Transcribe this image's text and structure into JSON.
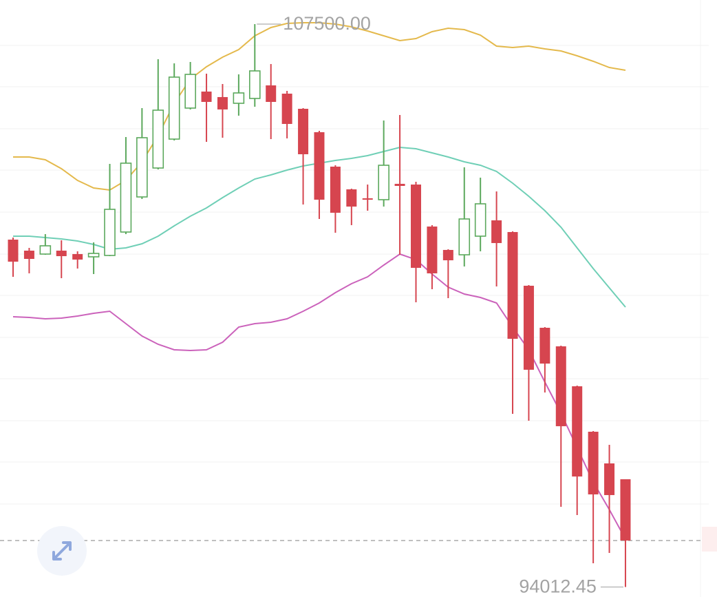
{
  "chart_data": {
    "type": "candlestick",
    "ylim": [
      93772.5,
      108078
    ],
    "up_color": "#5ba85c",
    "down_color": "#d6454f",
    "candles": [
      {
        "open": 102336,
        "high": 102386,
        "low": 101445,
        "close": 101808
      },
      {
        "open": 102072,
        "high": 102138,
        "low": 101528,
        "close": 101874
      },
      {
        "open": 101990,
        "high": 102468,
        "low": 101973,
        "close": 102188
      },
      {
        "open": 102072,
        "high": 102320,
        "low": 101412,
        "close": 101940
      },
      {
        "open": 101990,
        "high": 102056,
        "low": 101643,
        "close": 101858
      },
      {
        "open": 101924,
        "high": 102270,
        "low": 101511,
        "close": 102006
      },
      {
        "open": 101957,
        "high": 104151,
        "low": 101940,
        "close": 103062
      },
      {
        "open": 102518,
        "high": 104795,
        "low": 102468,
        "close": 104168
      },
      {
        "open": 103359,
        "high": 105488,
        "low": 103310,
        "close": 104778
      },
      {
        "open": 104052,
        "high": 106659,
        "low": 104019,
        "close": 105438
      },
      {
        "open": 104745,
        "high": 106560,
        "low": 104712,
        "close": 106230
      },
      {
        "open": 105488,
        "high": 106593,
        "low": 105455,
        "close": 106296
      },
      {
        "open": 105884,
        "high": 106313,
        "low": 104679,
        "close": 105636
      },
      {
        "open": 105752,
        "high": 106065,
        "low": 104778,
        "close": 105455
      },
      {
        "open": 105603,
        "high": 106296,
        "low": 105306,
        "close": 105851
      },
      {
        "open": 105719,
        "high": 107500,
        "low": 105521,
        "close": 106379
      },
      {
        "open": 106032,
        "high": 106544,
        "low": 104745,
        "close": 105636
      },
      {
        "open": 105834,
        "high": 105900,
        "low": 104762,
        "close": 105108
      },
      {
        "open": 105471,
        "high": 105488,
        "low": 103178,
        "close": 104382
      },
      {
        "open": 104910,
        "high": 104943,
        "low": 102831,
        "close": 103293
      },
      {
        "open": 104085,
        "high": 104118,
        "low": 102501,
        "close": 102980
      },
      {
        "open": 103541,
        "high": 103557,
        "low": 102683,
        "close": 103128
      },
      {
        "open": 103326,
        "high": 103656,
        "low": 103029,
        "close": 103293
      },
      {
        "open": 103293,
        "high": 105191,
        "low": 103128,
        "close": 104118
      },
      {
        "open": 103673,
        "high": 105323,
        "low": 101973,
        "close": 103623
      },
      {
        "open": 103656,
        "high": 103722,
        "low": 100835,
        "close": 101660
      },
      {
        "open": 102650,
        "high": 102683,
        "low": 101148,
        "close": 101528
      },
      {
        "open": 102089,
        "high": 102105,
        "low": 100934,
        "close": 101841
      },
      {
        "open": 101973,
        "high": 104069,
        "low": 101693,
        "close": 102831
      },
      {
        "open": 102419,
        "high": 103821,
        "low": 102056,
        "close": 103194
      },
      {
        "open": 102798,
        "high": 103491,
        "low": 101214,
        "close": 102254
      },
      {
        "open": 102518,
        "high": 102534,
        "low": 98162,
        "close": 99960
      },
      {
        "open": 101231,
        "high": 101247,
        "low": 97997,
        "close": 99218
      },
      {
        "open": 100224,
        "high": 100241,
        "low": 98673,
        "close": 99366
      },
      {
        "open": 99779,
        "high": 99795,
        "low": 95934,
        "close": 97865
      },
      {
        "open": 98822,
        "high": 98838,
        "low": 95736,
        "close": 96660
      },
      {
        "open": 97733,
        "high": 97749,
        "low": 94581,
        "close": 96231
      },
      {
        "open": 96974,
        "high": 97419,
        "low": 94829,
        "close": 96215
      },
      {
        "open": 96594,
        "high": 96594,
        "low": 94012.45,
        "close": 95126
      }
    ],
    "overlays": [
      {
        "color": "#e4b94c",
        "values": [
          104316,
          104316,
          104250,
          104036,
          103755,
          103574,
          103524,
          103755,
          104201,
          104828,
          105603,
          106181,
          106478,
          106709,
          106890,
          107220,
          107418,
          107517,
          107534,
          107534,
          107500,
          107435,
          107336,
          107220,
          107105,
          107154,
          107319,
          107402,
          107369,
          107237,
          106973,
          106940,
          106973,
          106907,
          106857,
          106742,
          106610,
          106461,
          106395
        ]
      },
      {
        "color": "#6fcfb6",
        "values": [
          102419,
          102419,
          102386,
          102353,
          102303,
          102221,
          102105,
          102138,
          102237,
          102419,
          102666,
          102897,
          103095,
          103343,
          103574,
          103788,
          103887,
          104003,
          104102,
          104168,
          104234,
          104283,
          104349,
          104448,
          104547,
          104514,
          104415,
          104316,
          104201,
          104118,
          103970,
          103689,
          103376,
          103029,
          102633,
          102138,
          101643,
          101181,
          100719
        ]
      },
      {
        "color": "#cb62bb",
        "values": [
          100488,
          100472,
          100439,
          100455,
          100505,
          100571,
          100620,
          100323,
          100026,
          99828,
          99696,
          99680,
          99696,
          99878,
          100241,
          100323,
          100356,
          100439,
          100620,
          100818,
          101066,
          101280,
          101445,
          101726,
          101990,
          101858,
          101511,
          101198,
          101033,
          100950,
          100818,
          100241,
          99696,
          98921,
          98178,
          97353,
          96528,
          95868,
          95159
        ]
      }
    ],
    "annotations": [
      {
        "value": 107500,
        "label": "107500.00"
      },
      {
        "value": 94012.45,
        "label": "94012.45"
      }
    ]
  }
}
